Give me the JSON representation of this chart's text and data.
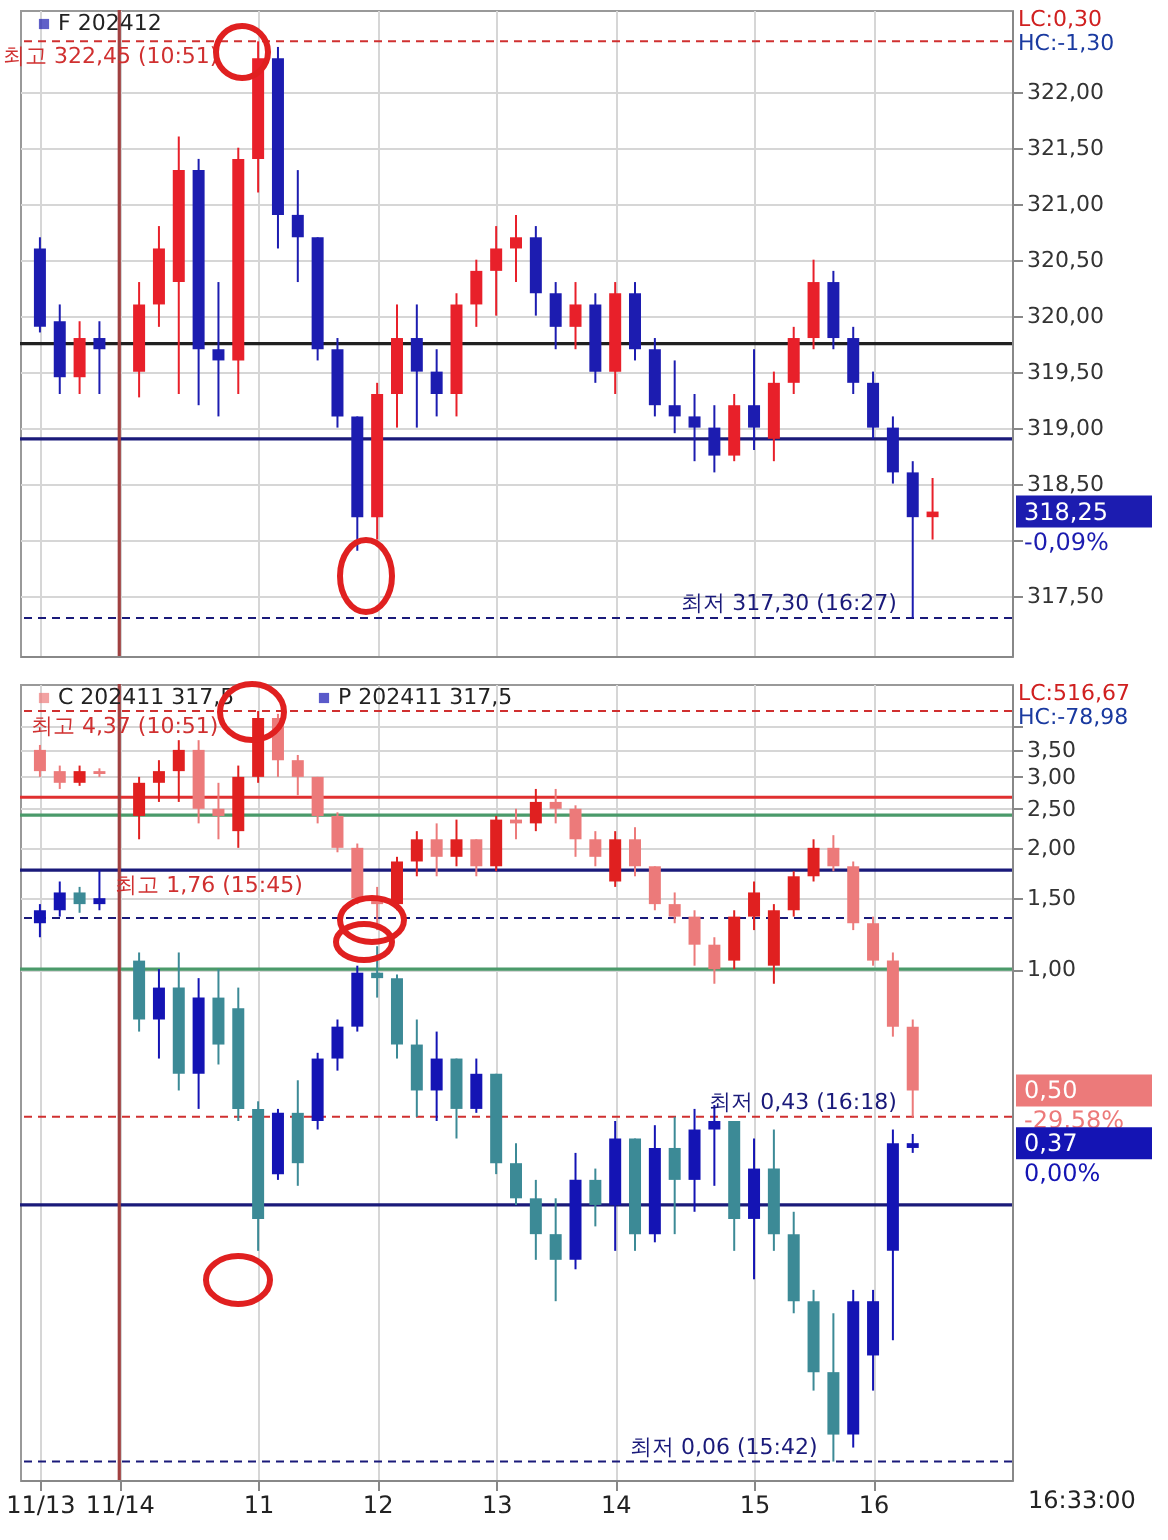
{
  "chart_data": [
    {
      "type": "candlestick",
      "categories": [
        "11/13",
        null,
        null,
        null,
        "11/14",
        null,
        null,
        null,
        null,
        null,
        null,
        "11",
        null,
        null,
        null,
        null,
        null,
        "12",
        null,
        null,
        null,
        null,
        null,
        "13",
        null,
        null,
        null,
        null,
        null,
        "14",
        null,
        null,
        null,
        null,
        null,
        null,
        "15",
        null,
        null,
        null,
        null,
        null,
        "16",
        null,
        null,
        null,
        null,
        null,
        null
      ],
      "series": [
        {
          "name": "F 202412",
          "ohlc": [
            [
              320.6,
              320.7,
              319.85,
              319.9
            ],
            [
              319.95,
              320.1,
              319.3,
              319.45
            ],
            [
              319.45,
              319.95,
              319.3,
              319.8
            ],
            [
              319.8,
              319.95,
              319.3,
              319.7
            ],
            null,
            [
              319.5,
              320.3,
              319.27,
              320.1
            ],
            [
              320.1,
              320.8,
              319.9,
              320.6
            ],
            [
              320.3,
              321.6,
              319.3,
              321.3
            ],
            [
              321.3,
              321.4,
              319.2,
              319.7
            ],
            [
              319.7,
              320.3,
              319.1,
              319.6
            ],
            [
              319.6,
              321.5,
              319.3,
              321.4
            ],
            [
              321.4,
              322.45,
              321.1,
              322.3
            ],
            [
              322.3,
              322.4,
              320.6,
              320.9
            ],
            [
              320.9,
              321.3,
              320.3,
              320.7
            ],
            [
              320.7,
              320.7,
              319.6,
              319.7
            ],
            [
              319.7,
              319.8,
              319.0,
              319.1
            ],
            [
              319.1,
              319.1,
              317.9,
              318.2
            ],
            [
              318.2,
              319.4,
              318.0,
              319.3
            ],
            [
              319.3,
              320.1,
              319.0,
              319.8
            ],
            [
              319.8,
              320.1,
              319.0,
              319.5
            ],
            [
              319.5,
              319.7,
              319.1,
              319.3
            ],
            [
              319.3,
              320.2,
              319.1,
              320.1
            ],
            [
              320.1,
              320.5,
              319.9,
              320.4
            ],
            [
              320.4,
              320.8,
              320.0,
              320.6
            ],
            [
              320.6,
              320.9,
              320.3,
              320.7
            ],
            [
              320.7,
              320.8,
              320.0,
              320.2
            ],
            [
              320.2,
              320.3,
              319.7,
              319.9
            ],
            [
              319.9,
              320.3,
              319.7,
              320.1
            ],
            [
              320.1,
              320.2,
              319.4,
              319.5
            ],
            [
              319.5,
              320.3,
              319.3,
              320.2
            ],
            [
              320.2,
              320.3,
              319.6,
              319.7
            ],
            [
              319.7,
              319.8,
              319.1,
              319.2
            ],
            [
              319.2,
              319.6,
              318.95,
              319.1
            ],
            [
              319.1,
              319.3,
              318.7,
              319.0
            ],
            [
              319.0,
              319.2,
              318.6,
              318.75
            ],
            [
              318.75,
              319.3,
              318.7,
              319.2
            ],
            [
              319.2,
              319.7,
              318.8,
              319.0
            ],
            [
              318.9,
              319.5,
              318.7,
              319.4
            ],
            [
              319.4,
              319.9,
              319.3,
              319.8
            ],
            [
              319.8,
              320.5,
              319.7,
              320.3
            ],
            [
              320.3,
              320.4,
              319.7,
              319.8
            ],
            [
              319.8,
              319.9,
              319.3,
              319.4
            ],
            [
              319.4,
              319.5,
              318.9,
              319.0
            ],
            [
              319.0,
              319.1,
              318.5,
              318.6
            ],
            [
              318.6,
              318.7,
              317.3,
              318.2
            ],
            [
              318.2,
              318.55,
              318.0,
              318.25
            ],
            null,
            null,
            null
          ],
          "colors": [
            "#1c1cb0",
            "#1c1cb0",
            "#e8202a",
            "#1c1cb0",
            null,
            "#e8202a",
            "#e8202a",
            "#e8202a",
            "#1c1cb0",
            "#1c1cb0",
            "#e8202a",
            "#e8202a",
            "#1c1cb0",
            "#1c1cb0",
            "#1c1cb0",
            "#1c1cb0",
            "#1c1cb0",
            "#e8202a",
            "#e8202a",
            "#1c1cb0",
            "#1c1cb0",
            "#e8202a",
            "#e8202a",
            "#e8202a",
            "#e8202a",
            "#1c1cb0",
            "#1c1cb0",
            "#e8202a",
            "#1c1cb0",
            "#e8202a",
            "#1c1cb0",
            "#1c1cb0",
            "#1c1cb0",
            "#1c1cb0",
            "#1c1cb0",
            "#e8202a",
            "#1c1cb0",
            "#e8202a",
            "#e8202a",
            "#e8202a",
            "#1c1cb0",
            "#1c1cb0",
            "#1c1cb0",
            "#1c1cb0",
            "#1c1cb0",
            "#e8202a",
            null,
            null,
            null
          ]
        }
      ],
      "ylim": [
        316.96,
        322.73
      ],
      "yticks": [
        {
          "value": 317.5,
          "label": "317,50"
        },
        {
          "value": 318,
          "label": null
        },
        {
          "value": 318.5,
          "label": "318,50"
        },
        {
          "value": 319,
          "label": "319,00"
        },
        {
          "value": 319.5,
          "label": "319,50"
        },
        {
          "value": 320,
          "label": "320,00"
        },
        {
          "value": 320.5,
          "label": "320,50"
        },
        {
          "value": 321,
          "label": "321,00"
        },
        {
          "value": 321.5,
          "label": "321,50"
        },
        {
          "value": 322,
          "label": "322,00"
        }
      ],
      "grid": true,
      "legend": "top left",
      "tick_labels": "y",
      "ref_lines": [
        {
          "axis": "y",
          "value": 319.75,
          "color": "#202020"
        },
        {
          "axis": "y",
          "value": 318.9,
          "color": "#1a1a7a"
        },
        {
          "axis": "y",
          "value": 322.45,
          "color": "#d03030",
          "line_style": "dashed"
        },
        {
          "axis": "y",
          "value": 317.3,
          "color": "#1a1a7a",
          "line_style": "dashed"
        },
        {
          "axis": "x",
          "value": "11/14",
          "color": "#a04040"
        }
      ],
      "annotations": [
        {
          "text": "최고 322,45 (10:51)",
          "y": 322.45
        },
        {
          "text": "최저 317,30 (16:27)",
          "y": 317.3
        },
        "LC:0,30",
        "HC:-1,30",
        "318,25",
        "-0,09%"
      ]
    },
    {
      "type": "candlestick",
      "categories": [
        "11/13",
        null,
        null,
        null,
        "11/14",
        null,
        null,
        null,
        null,
        null,
        null,
        "11",
        null,
        null,
        null,
        null,
        null,
        "12",
        null,
        null,
        null,
        null,
        null,
        "13",
        null,
        null,
        null,
        null,
        null,
        "14",
        null,
        null,
        null,
        null,
        null,
        null,
        "15",
        null,
        null,
        null,
        null,
        null,
        "16",
        null,
        null,
        null,
        null,
        null,
        null
      ],
      "series": [
        {
          "name": "C 202411 317,5",
          "ohlc": [
            [
              3.5,
              3.6,
              3.0,
              3.1
            ],
            [
              3.1,
              3.2,
              2.8,
              2.9
            ],
            [
              2.9,
              3.2,
              2.85,
              3.1
            ],
            [
              3.1,
              3.15,
              3.0,
              3.05
            ],
            null,
            [
              2.4,
              3.0,
              2.1,
              2.9
            ],
            [
              2.9,
              3.3,
              2.6,
              3.1
            ],
            [
              3.1,
              3.7,
              2.6,
              3.5
            ],
            [
              3.5,
              3.7,
              2.3,
              2.5
            ],
            [
              2.5,
              2.9,
              2.1,
              2.4
            ],
            [
              2.2,
              3.2,
              2.0,
              3.0
            ],
            [
              3.0,
              4.37,
              2.9,
              4.2
            ],
            [
              4.2,
              4.3,
              3.0,
              3.3
            ],
            [
              3.3,
              3.4,
              2.7,
              3.0
            ],
            [
              3.0,
              3.0,
              2.3,
              2.4
            ],
            [
              2.4,
              2.45,
              1.95,
              2.0
            ],
            [
              2.0,
              2.05,
              1.45,
              1.5
            ],
            [
              1.5,
              1.6,
              1.25,
              1.45
            ],
            [
              1.45,
              1.9,
              1.4,
              1.85
            ],
            [
              1.85,
              2.2,
              1.7,
              2.1
            ],
            [
              2.1,
              2.3,
              1.7,
              1.9
            ],
            [
              1.9,
              2.35,
              1.8,
              2.1
            ],
            [
              2.1,
              2.1,
              1.7,
              1.8
            ],
            [
              1.8,
              2.4,
              1.75,
              2.35
            ],
            [
              2.35,
              2.5,
              2.1,
              2.3
            ],
            [
              2.3,
              2.8,
              2.2,
              2.6
            ],
            [
              2.6,
              2.8,
              2.3,
              2.5
            ],
            [
              2.5,
              2.55,
              1.9,
              2.1
            ],
            [
              2.1,
              2.2,
              1.8,
              1.9
            ],
            [
              1.65,
              2.2,
              1.6,
              2.1
            ],
            [
              2.1,
              2.25,
              1.7,
              1.8
            ],
            [
              1.8,
              1.8,
              1.4,
              1.45
            ],
            [
              1.45,
              1.55,
              1.3,
              1.35
            ],
            [
              1.35,
              1.4,
              1.02,
              1.15
            ],
            [
              1.15,
              1.2,
              0.92,
              1.0
            ],
            [
              1.05,
              1.4,
              1.0,
              1.35
            ],
            [
              1.35,
              1.65,
              1.25,
              1.55
            ],
            [
              1.02,
              1.45,
              0.92,
              1.4
            ],
            [
              1.4,
              1.75,
              1.35,
              1.7
            ],
            [
              1.7,
              2.1,
              1.65,
              2.0
            ],
            [
              2.0,
              2.15,
              1.75,
              1.8
            ],
            [
              1.8,
              1.85,
              1.25,
              1.3
            ],
            [
              1.3,
              1.35,
              1.02,
              1.05
            ],
            [
              1.05,
              1.1,
              0.68,
              0.72
            ],
            [
              0.72,
              0.75,
              0.43,
              0.5
            ],
            null,
            null,
            null,
            null
          ],
          "colors": [
            "#ec7a7a",
            "#ec7a7a",
            "#e02020",
            "#ec7a7a",
            null,
            "#e02020",
            "#e02020",
            "#e02020",
            "#ec7a7a",
            "#ec7a7a",
            "#e02020",
            "#e02020",
            "#ec7a7a",
            "#ec7a7a",
            "#ec7a7a",
            "#ec7a7a",
            "#ec7a7a",
            "#ec7a7a",
            "#e02020",
            "#e02020",
            "#ec7a7a",
            "#e02020",
            "#ec7a7a",
            "#e02020",
            "#ec7a7a",
            "#e02020",
            "#ec7a7a",
            "#ec7a7a",
            "#ec7a7a",
            "#e02020",
            "#ec7a7a",
            "#ec7a7a",
            "#ec7a7a",
            "#ec7a7a",
            "#ec7a7a",
            "#e02020",
            "#e02020",
            "#e02020",
            "#e02020",
            "#e02020",
            "#ec7a7a",
            "#ec7a7a",
            "#ec7a7a",
            "#ec7a7a",
            "#ec7a7a",
            null,
            null,
            null,
            null
          ]
        },
        {
          "name": "P 202411 317,5",
          "ohlc": [
            [
              1.3,
              1.45,
              1.2,
              1.4
            ],
            [
              1.4,
              1.65,
              1.35,
              1.55
            ],
            [
              1.55,
              1.6,
              1.38,
              1.45
            ],
            [
              1.45,
              1.76,
              1.4,
              1.5
            ],
            null,
            [
              1.05,
              1.1,
              0.7,
              0.75
            ],
            [
              0.75,
              1.0,
              0.6,
              0.9
            ],
            [
              0.9,
              1.1,
              0.5,
              0.55
            ],
            [
              0.55,
              0.95,
              0.45,
              0.85
            ],
            [
              0.85,
              1.0,
              0.58,
              0.65
            ],
            [
              0.8,
              0.9,
              0.42,
              0.45
            ],
            [
              0.45,
              0.47,
              0.2,
              0.24
            ],
            [
              0.31,
              0.45,
              0.3,
              0.44
            ],
            [
              0.44,
              0.53,
              0.29,
              0.33
            ],
            [
              0.42,
              0.62,
              0.4,
              0.6
            ],
            [
              0.6,
              0.75,
              0.56,
              0.72
            ],
            [
              0.72,
              1.02,
              0.7,
              0.98
            ],
            [
              0.98,
              1.14,
              0.85,
              0.95
            ],
            [
              0.95,
              0.97,
              0.6,
              0.65
            ],
            [
              0.65,
              0.75,
              0.43,
              0.5
            ],
            [
              0.5,
              0.7,
              0.42,
              0.6
            ],
            [
              0.6,
              0.6,
              0.38,
              0.45
            ],
            [
              0.45,
              0.6,
              0.44,
              0.55
            ],
            [
              0.55,
              0.55,
              0.31,
              0.33
            ],
            [
              0.33,
              0.37,
              0.26,
              0.27
            ],
            [
              0.27,
              0.3,
              0.19,
              0.22
            ],
            [
              0.22,
              0.27,
              0.15,
              0.19
            ],
            [
              0.19,
              0.35,
              0.18,
              0.3
            ],
            [
              0.3,
              0.32,
              0.23,
              0.26
            ],
            [
              0.26,
              0.42,
              0.2,
              0.38
            ],
            [
              0.38,
              0.38,
              0.2,
              0.22
            ],
            [
              0.22,
              0.41,
              0.21,
              0.36
            ],
            [
              0.36,
              0.43,
              0.22,
              0.3
            ],
            [
              0.3,
              0.45,
              0.25,
              0.4
            ],
            [
              0.4,
              0.46,
              0.29,
              0.42
            ],
            [
              0.42,
              0.42,
              0.2,
              0.24
            ],
            [
              0.24,
              0.38,
              0.17,
              0.32
            ],
            [
              0.32,
              0.4,
              0.2,
              0.22
            ],
            [
              0.22,
              0.25,
              0.14,
              0.15
            ],
            [
              0.15,
              0.16,
              0.09,
              0.1
            ],
            [
              0.1,
              0.14,
              0.06,
              0.07
            ],
            [
              0.07,
              0.16,
              0.065,
              0.15
            ],
            [
              0.11,
              0.16,
              0.09,
              0.15
            ],
            [
              0.2,
              0.4,
              0.12,
              0.37
            ],
            [
              0.36,
              0.39,
              0.35,
              0.37
            ],
            null,
            null,
            null,
            null
          ],
          "colors": [
            "#1414b4",
            "#1414b4",
            "#3c8a96",
            "#1414b4",
            null,
            "#3c8a96",
            "#1414b4",
            "#3c8a96",
            "#1414b4",
            "#3c8a96",
            "#3c8a96",
            "#3c8a96",
            "#1414b4",
            "#3c8a96",
            "#1414b4",
            "#1414b4",
            "#1414b4",
            "#3c8a96",
            "#3c8a96",
            "#3c8a96",
            "#1414b4",
            "#3c8a96",
            "#1414b4",
            "#3c8a96",
            "#3c8a96",
            "#3c8a96",
            "#3c8a96",
            "#1414b4",
            "#3c8a96",
            "#1414b4",
            "#3c8a96",
            "#1414b4",
            "#3c8a96",
            "#1414b4",
            "#1414b4",
            "#3c8a96",
            "#1414b4",
            "#3c8a96",
            "#3c8a96",
            "#3c8a96",
            "#3c8a96",
            "#1414b4",
            "#1414b4",
            "#1414b4",
            "#1414b4",
            null,
            null,
            null,
            null
          ]
        }
      ],
      "log": true,
      "ylim": [
        0.054,
        5.1
      ],
      "yticks": [
        {
          "value": 1,
          "label": "1,00"
        },
        {
          "value": 1.5,
          "label": "1,50"
        },
        {
          "value": 2,
          "label": "2,00"
        },
        {
          "value": 2.5,
          "label": "2,50"
        },
        {
          "value": 3,
          "label": "3,00"
        },
        {
          "value": 3.5,
          "label": "3,50"
        },
        {
          "value": 4,
          "label": null
        }
      ],
      "grid": true,
      "legend": "top left",
      "ref_lines": [
        {
          "axis": "y",
          "value": 2.67,
          "color": "#e03030"
        },
        {
          "axis": "y",
          "value": 2.41,
          "color": "#4a9a6a"
        },
        {
          "axis": "y",
          "value": 1.76,
          "color": "#1a1a7a"
        },
        {
          "axis": "y",
          "value": 1.0,
          "color": "#4a9a6a"
        },
        {
          "axis": "y",
          "value": 0.26,
          "color": "#1a1a7a"
        },
        {
          "axis": "y",
          "value": 4.37,
          "color": "#d03030",
          "line_style": "dashed"
        },
        {
          "axis": "y",
          "value": 1.34,
          "color": "#1a1a7a",
          "line_style": "dashed"
        },
        {
          "axis": "y",
          "value": 0.43,
          "color": "#d03030",
          "line_style": "dashed"
        },
        {
          "axis": "y",
          "value": 0.06,
          "color": "#1a1a7a",
          "line_style": "dashed"
        },
        {
          "axis": "x",
          "value": "11/14",
          "color": "#a04040"
        }
      ],
      "annotations": [
        {
          "text": "최고 4,37 (10:51)",
          "y": 4.37
        },
        {
          "text": "최고 1,76 (15:45)",
          "y": 1.76
        },
        {
          "text": "최저 0,43 (16:18)",
          "y": 0.43
        },
        {
          "text": "최저 0,06 (15:42)",
          "y": 0.06
        },
        "LC:516,67",
        "HC:-78,98",
        "0,50",
        "-29,58%",
        "0,37",
        "0,00%",
        "16:33:00"
      ]
    }
  ]
}
